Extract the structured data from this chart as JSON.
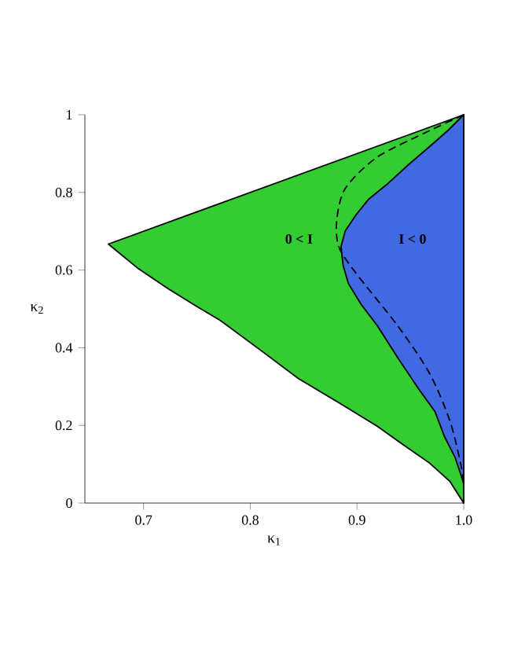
{
  "chart_data": {
    "type": "area",
    "xlabel": "κ$_{1}$",
    "ylabel": "κ$_{2}$",
    "xlim": [
      0.645,
      1.0
    ],
    "xticks": [
      0.7,
      0.8,
      0.9,
      {
        "value": 1.0,
        "label": "1.0"
      }
    ],
    "ylim": [
      0,
      1
    ],
    "yticks": [
      0,
      0.2,
      0.4,
      0.6,
      0.8,
      1
    ],
    "series": [
      {
        "color": "#33cc33",
        "x": [
          0.667,
          0.694,
          0.723,
          0.747,
          0.772,
          0.809,
          0.845,
          0.882,
          0.919,
          0.943,
          0.968,
          0.987,
          1.0,
          1.0
        ],
        "values": [
          0.667,
          0.606,
          0.552,
          0.511,
          0.47,
          0.395,
          0.321,
          0.26,
          0.198,
          0.151,
          0.103,
          0.056,
          0.0,
          1.0
        ]
      },
      {
        "color": "#4169e1",
        "x": [
          1.0,
          0.985,
          0.968,
          0.948,
          0.929,
          0.911,
          0.899,
          0.889,
          0.885,
          0.887,
          0.892,
          0.904,
          0.919,
          0.938,
          0.958,
          0.973,
          0.982,
          0.992,
          0.997,
          1.0
        ],
        "values": [
          1.0,
          0.959,
          0.918,
          0.871,
          0.823,
          0.783,
          0.742,
          0.701,
          0.66,
          0.612,
          0.565,
          0.511,
          0.457,
          0.375,
          0.293,
          0.236,
          0.171,
          0.117,
          0.076,
          0.049
        ]
      },
      {
        "type": "line",
        "color": "#000000",
        "line_style": "dashed",
        "x": [
          1.0,
          0.968,
          0.919,
          0.889,
          0.881,
          0.883,
          0.899,
          0.938,
          0.968,
          0.987,
          0.997,
          1.0
        ],
        "values": [
          1.0,
          0.959,
          0.891,
          0.81,
          0.728,
          0.66,
          0.592,
          0.457,
          0.334,
          0.212,
          0.103,
          0.049
        ]
      }
    ],
    "annotations": [
      "0 < I",
      "I < 0"
    ],
    "grid": false
  }
}
